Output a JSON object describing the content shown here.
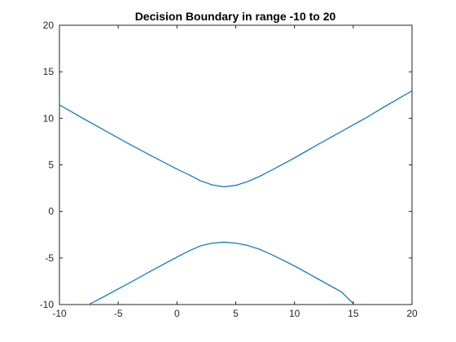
{
  "chart_data": {
    "type": "line",
    "title": "Decision Boundary in range -10 to 20",
    "xlabel": "",
    "ylabel": "",
    "xlim": [
      -10,
      20
    ],
    "ylim": [
      -10,
      20
    ],
    "xticks": [
      -10,
      -5,
      0,
      5,
      10,
      15,
      20
    ],
    "yticks": [
      -10,
      -5,
      0,
      5,
      10,
      15,
      20
    ],
    "grid": false,
    "legend": "none",
    "series": [
      {
        "color": "#0072BD",
        "x": [
          -10,
          -8,
          -6,
          -4,
          -2,
          0,
          1,
          2,
          3,
          4,
          5,
          6,
          7,
          8,
          10,
          12,
          14,
          16,
          18,
          20
        ],
        "y": [
          11.45,
          10.0,
          8.6,
          7.2,
          5.85,
          4.55,
          3.95,
          3.3,
          2.85,
          2.65,
          2.8,
          3.2,
          3.75,
          4.4,
          5.75,
          7.2,
          8.6,
          10.0,
          11.5,
          12.95
        ]
      },
      {
        "color": "#0072BD",
        "x": [
          -7.5,
          -6,
          -4,
          -2,
          0,
          1,
          2,
          3,
          4,
          5,
          6,
          7,
          8,
          10,
          12,
          14,
          15
        ],
        "y": [
          -10.0,
          -9.0,
          -7.65,
          -6.25,
          -4.9,
          -4.25,
          -3.7,
          -3.4,
          -3.3,
          -3.4,
          -3.65,
          -4.05,
          -4.6,
          -5.85,
          -7.25,
          -8.65,
          -9.9
        ]
      }
    ]
  }
}
